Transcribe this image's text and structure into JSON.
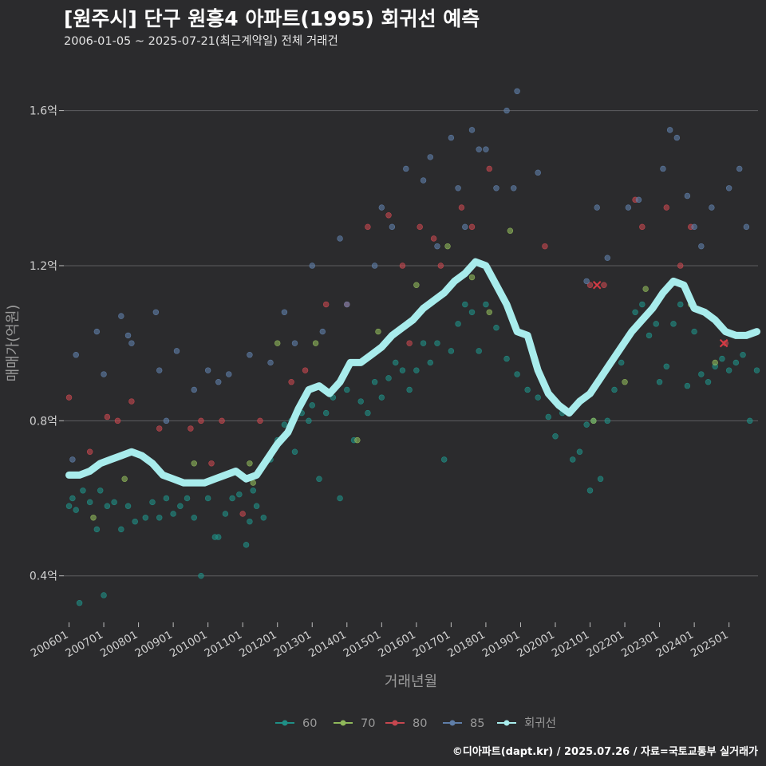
{
  "title": "[원주시] 단구 원흥4 아파트(1995) 회귀선 예측",
  "subtitle": "2006-01-05 ~ 2025-07-21(최근계약일) 전체 거래건",
  "footer": "©디아파트(dapt.kr) / 2025.07.26 / 자료=국토교통부 실거래가",
  "colors": {
    "background": "#2b2b2d",
    "grid": "#5e5e60",
    "s60": "#1f8f86",
    "s70": "#8fb85a",
    "s80": "#c6474f",
    "s85": "#5f7ea8",
    "regression": "#a8ecec"
  },
  "chart_data": {
    "type": "scatter",
    "xlabel": "거래년월",
    "ylabel": "매매가(억원)",
    "xlim": [
      2005.85,
      2025.95
    ],
    "ylim": [
      0.28,
      1.7
    ],
    "yticks": [
      0.4,
      0.8,
      1.2,
      1.6
    ],
    "ytick_labels": [
      "0.4억",
      "0.8억",
      "1.2억",
      "1.6억"
    ],
    "xticks": [
      2006,
      2007,
      2008,
      2009,
      2010,
      2011,
      2012,
      2013,
      2014,
      2015,
      2016,
      2017,
      2018,
      2019,
      2020,
      2021,
      2022,
      2023,
      2024,
      2025
    ],
    "xtick_labels": [
      "200601",
      "200701",
      "200801",
      "200901",
      "201001",
      "201101",
      "201201",
      "201301",
      "201401",
      "201501",
      "201601",
      "201701",
      "201801",
      "201901",
      "202001",
      "202101",
      "202201",
      "202301",
      "202401",
      "202501"
    ],
    "legend": [
      "60",
      "70",
      "80",
      "85",
      "회귀선"
    ],
    "legend_position": "bottom",
    "series": [
      {
        "name": "60",
        "points": [
          [
            2006.0,
            0.58
          ],
          [
            2006.1,
            0.6
          ],
          [
            2006.2,
            0.57
          ],
          [
            2006.3,
            0.33
          ],
          [
            2006.4,
            0.62
          ],
          [
            2006.6,
            0.59
          ],
          [
            2006.8,
            0.52
          ],
          [
            2006.9,
            0.62
          ],
          [
            2007.0,
            0.35
          ],
          [
            2007.1,
            0.58
          ],
          [
            2007.3,
            0.59
          ],
          [
            2007.5,
            0.52
          ],
          [
            2007.7,
            0.58
          ],
          [
            2007.9,
            0.54
          ],
          [
            2008.2,
            0.55
          ],
          [
            2008.4,
            0.59
          ],
          [
            2008.6,
            0.55
          ],
          [
            2008.8,
            0.6
          ],
          [
            2009.0,
            0.56
          ],
          [
            2009.2,
            0.58
          ],
          [
            2009.4,
            0.6
          ],
          [
            2009.6,
            0.55
          ],
          [
            2009.8,
            0.4
          ],
          [
            2010.0,
            0.6
          ],
          [
            2010.2,
            0.5
          ],
          [
            2010.3,
            0.5
          ],
          [
            2010.5,
            0.56
          ],
          [
            2010.7,
            0.6
          ],
          [
            2010.9,
            0.61
          ],
          [
            2011.1,
            0.48
          ],
          [
            2011.2,
            0.54
          ],
          [
            2011.3,
            0.62
          ],
          [
            2011.4,
            0.58
          ],
          [
            2011.6,
            0.55
          ],
          [
            2011.8,
            0.7
          ],
          [
            2012.0,
            0.75
          ],
          [
            2012.2,
            0.79
          ],
          [
            2012.4,
            0.8
          ],
          [
            2012.5,
            0.72
          ],
          [
            2012.7,
            0.82
          ],
          [
            2012.9,
            0.8
          ],
          [
            2013.0,
            0.84
          ],
          [
            2013.2,
            0.65
          ],
          [
            2013.4,
            0.82
          ],
          [
            2013.6,
            0.86
          ],
          [
            2013.8,
            0.6
          ],
          [
            2014.0,
            0.88
          ],
          [
            2014.2,
            0.75
          ],
          [
            2014.4,
            0.85
          ],
          [
            2014.6,
            0.82
          ],
          [
            2014.8,
            0.9
          ],
          [
            2015.0,
            0.86
          ],
          [
            2015.2,
            0.91
          ],
          [
            2015.4,
            0.95
          ],
          [
            2015.6,
            0.93
          ],
          [
            2015.8,
            0.88
          ],
          [
            2016.0,
            0.93
          ],
          [
            2016.2,
            1.0
          ],
          [
            2016.4,
            0.95
          ],
          [
            2016.6,
            1.0
          ],
          [
            2016.8,
            0.7
          ],
          [
            2017.0,
            0.98
          ],
          [
            2017.2,
            1.05
          ],
          [
            2017.4,
            1.1
          ],
          [
            2017.6,
            1.08
          ],
          [
            2017.8,
            0.98
          ],
          [
            2018.0,
            1.1
          ],
          [
            2018.3,
            1.04
          ],
          [
            2018.6,
            0.96
          ],
          [
            2018.9,
            0.92
          ],
          [
            2019.2,
            0.88
          ],
          [
            2019.5,
            0.86
          ],
          [
            2019.8,
            0.81
          ],
          [
            2020.0,
            0.76
          ],
          [
            2020.2,
            0.82
          ],
          [
            2020.5,
            0.7
          ],
          [
            2020.7,
            0.72
          ],
          [
            2020.9,
            0.79
          ],
          [
            2021.0,
            0.62
          ],
          [
            2021.1,
            0.8
          ],
          [
            2021.3,
            0.65
          ],
          [
            2021.5,
            0.8
          ],
          [
            2021.7,
            0.88
          ],
          [
            2021.9,
            0.95
          ],
          [
            2022.1,
            1.02
          ],
          [
            2022.3,
            1.08
          ],
          [
            2022.5,
            1.1
          ],
          [
            2022.7,
            1.02
          ],
          [
            2022.9,
            1.05
          ],
          [
            2023.0,
            0.9
          ],
          [
            2023.2,
            0.94
          ],
          [
            2023.4,
            1.05
          ],
          [
            2023.6,
            1.1
          ],
          [
            2023.8,
            0.89
          ],
          [
            2024.0,
            1.03
          ],
          [
            2024.2,
            0.92
          ],
          [
            2024.4,
            0.9
          ],
          [
            2024.6,
            0.94
          ],
          [
            2024.8,
            0.96
          ],
          [
            2025.0,
            0.93
          ],
          [
            2025.2,
            0.95
          ],
          [
            2025.4,
            0.97
          ],
          [
            2025.6,
            0.8
          ],
          [
            2025.8,
            0.93
          ]
        ]
      },
      {
        "name": "70",
        "points": [
          [
            2006.7,
            0.55
          ],
          [
            2007.6,
            0.65
          ],
          [
            2009.6,
            0.69
          ],
          [
            2011.2,
            0.69
          ],
          [
            2011.3,
            0.64
          ],
          [
            2012.0,
            1.0
          ],
          [
            2013.1,
            1.0
          ],
          [
            2014.3,
            0.75
          ],
          [
            2014.9,
            1.03
          ],
          [
            2016.0,
            1.15
          ],
          [
            2016.9,
            1.25
          ],
          [
            2017.6,
            1.17
          ],
          [
            2018.1,
            1.08
          ],
          [
            2018.7,
            1.29
          ],
          [
            2021.1,
            0.8
          ],
          [
            2022.0,
            0.9
          ],
          [
            2022.6,
            1.14
          ],
          [
            2023.9,
            1.1
          ],
          [
            2024.6,
            0.95
          ]
        ]
      },
      {
        "name": "80",
        "points": [
          [
            2006.0,
            0.86
          ],
          [
            2006.6,
            0.72
          ],
          [
            2007.1,
            0.81
          ],
          [
            2007.4,
            0.8
          ],
          [
            2007.8,
            0.85
          ],
          [
            2008.6,
            0.78
          ],
          [
            2009.5,
            0.78
          ],
          [
            2009.8,
            0.8
          ],
          [
            2010.1,
            0.69
          ],
          [
            2010.4,
            0.8
          ],
          [
            2011.0,
            0.56
          ],
          [
            2011.5,
            0.8
          ],
          [
            2012.4,
            0.9
          ],
          [
            2012.8,
            0.93
          ],
          [
            2013.4,
            1.1
          ],
          [
            2014.0,
            1.1
          ],
          [
            2014.6,
            1.3
          ],
          [
            2015.2,
            1.33
          ],
          [
            2015.6,
            1.2
          ],
          [
            2015.8,
            1.0
          ],
          [
            2016.1,
            1.3
          ],
          [
            2016.5,
            1.27
          ],
          [
            2016.7,
            1.2
          ],
          [
            2017.3,
            1.35
          ],
          [
            2017.6,
            1.3
          ],
          [
            2018.1,
            1.45
          ],
          [
            2019.7,
            1.25
          ],
          [
            2021.0,
            1.15
          ],
          [
            2021.4,
            1.15
          ],
          [
            2022.3,
            1.37
          ],
          [
            2022.5,
            1.3
          ],
          [
            2023.2,
            1.35
          ],
          [
            2023.6,
            1.2
          ],
          [
            2023.9,
            1.3
          ],
          [
            2024.9,
            1.0
          ]
        ]
      },
      {
        "name": "85",
        "points": [
          [
            2006.1,
            0.7
          ],
          [
            2006.2,
            0.97
          ],
          [
            2006.8,
            1.03
          ],
          [
            2007.0,
            0.92
          ],
          [
            2007.5,
            1.07
          ],
          [
            2007.7,
            1.02
          ],
          [
            2007.8,
            1.0
          ],
          [
            2008.5,
            1.08
          ],
          [
            2008.6,
            0.93
          ],
          [
            2008.8,
            0.8
          ],
          [
            2009.1,
            0.98
          ],
          [
            2009.6,
            0.88
          ],
          [
            2010.0,
            0.93
          ],
          [
            2010.3,
            0.9
          ],
          [
            2010.6,
            0.92
          ],
          [
            2011.2,
            0.97
          ],
          [
            2011.8,
            0.95
          ],
          [
            2012.2,
            1.08
          ],
          [
            2012.5,
            1.0
          ],
          [
            2013.0,
            1.2
          ],
          [
            2013.3,
            1.03
          ],
          [
            2013.8,
            1.27
          ],
          [
            2014.0,
            1.1
          ],
          [
            2014.8,
            1.2
          ],
          [
            2015.0,
            1.35
          ],
          [
            2015.3,
            1.3
          ],
          [
            2015.7,
            1.45
          ],
          [
            2016.2,
            1.42
          ],
          [
            2016.4,
            1.48
          ],
          [
            2016.6,
            1.25
          ],
          [
            2017.0,
            1.53
          ],
          [
            2017.2,
            1.4
          ],
          [
            2017.4,
            1.3
          ],
          [
            2017.6,
            1.55
          ],
          [
            2017.8,
            1.5
          ],
          [
            2018.0,
            1.5
          ],
          [
            2018.3,
            1.4
          ],
          [
            2018.6,
            1.6
          ],
          [
            2018.8,
            1.4
          ],
          [
            2018.9,
            1.65
          ],
          [
            2019.5,
            1.44
          ],
          [
            2020.9,
            1.16
          ],
          [
            2021.2,
            1.35
          ],
          [
            2021.5,
            1.22
          ],
          [
            2022.1,
            1.35
          ],
          [
            2022.4,
            1.37
          ],
          [
            2023.1,
            1.45
          ],
          [
            2023.3,
            1.55
          ],
          [
            2023.5,
            1.53
          ],
          [
            2023.8,
            1.38
          ],
          [
            2024.0,
            1.3
          ],
          [
            2024.2,
            1.25
          ],
          [
            2024.5,
            1.35
          ],
          [
            2025.0,
            1.4
          ],
          [
            2025.3,
            1.45
          ],
          [
            2025.5,
            1.3
          ]
        ]
      }
    ],
    "highlights": [
      {
        "series": "80",
        "x": 2021.2,
        "y": 1.15
      },
      {
        "series": "80",
        "x": 2024.85,
        "y": 1.0
      }
    ],
    "regression": {
      "name": "회귀선",
      "x": [
        2006.0,
        2006.3,
        2006.6,
        2006.9,
        2007.2,
        2007.5,
        2007.8,
        2008.1,
        2008.4,
        2008.7,
        2009.0,
        2009.3,
        2009.6,
        2009.9,
        2010.2,
        2010.5,
        2010.8,
        2011.1,
        2011.4,
        2011.7,
        2012.0,
        2012.3,
        2012.6,
        2012.9,
        2013.2,
        2013.5,
        2013.8,
        2014.1,
        2014.4,
        2014.7,
        2015.0,
        2015.3,
        2015.6,
        2015.9,
        2016.2,
        2016.5,
        2016.8,
        2017.1,
        2017.4,
        2017.7,
        2018.0,
        2018.3,
        2018.6,
        2018.9,
        2019.2,
        2019.5,
        2019.8,
        2020.1,
        2020.4,
        2020.7,
        2021.0,
        2021.3,
        2021.6,
        2021.9,
        2022.2,
        2022.5,
        2022.8,
        2023.1,
        2023.4,
        2023.7,
        2024.0,
        2024.3,
        2024.6,
        2024.9,
        2025.2,
        2025.5,
        2025.8
      ],
      "y": [
        0.66,
        0.66,
        0.67,
        0.69,
        0.7,
        0.71,
        0.72,
        0.71,
        0.69,
        0.66,
        0.65,
        0.64,
        0.64,
        0.64,
        0.65,
        0.66,
        0.67,
        0.65,
        0.66,
        0.7,
        0.74,
        0.77,
        0.83,
        0.88,
        0.89,
        0.87,
        0.9,
        0.95,
        0.95,
        0.97,
        0.99,
        1.02,
        1.04,
        1.06,
        1.09,
        1.11,
        1.13,
        1.16,
        1.18,
        1.21,
        1.2,
        1.15,
        1.1,
        1.03,
        1.02,
        0.93,
        0.87,
        0.84,
        0.82,
        0.85,
        0.87,
        0.91,
        0.95,
        0.99,
        1.03,
        1.06,
        1.09,
        1.13,
        1.16,
        1.15,
        1.09,
        1.08,
        1.06,
        1.03,
        1.02,
        1.02,
        1.03
      ]
    }
  }
}
